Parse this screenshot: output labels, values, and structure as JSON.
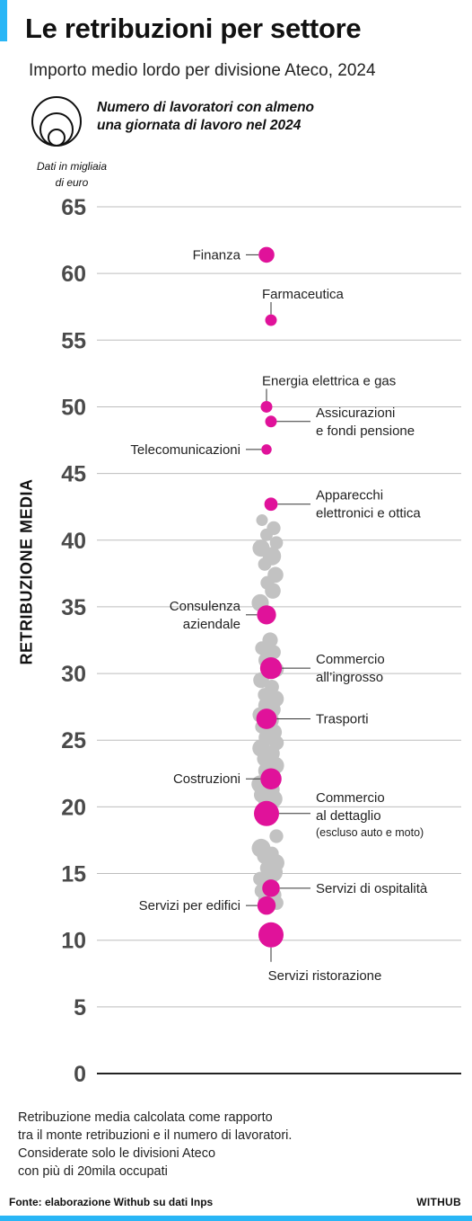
{
  "header": {
    "title": "Le retribuzioni per settore",
    "subtitle": "Importo medio lordo per divisione Ateco, 2024",
    "legend_text_line1": "Numero di lavoratori con almeno",
    "legend_text_line2": "una giornata di lavoro nel 2024",
    "unit_line1": "Dati in migliaia",
    "unit_line2": "di euro"
  },
  "footer": {
    "note_line1": "Retribuzione media calcolata come rapporto",
    "note_line2": "tra il monte retribuzioni e il numero di lavoratori.",
    "note_line3": "Considerate solo le divisioni Ateco",
    "note_line4": "con più di 20mila occupati",
    "source": "Fonte: elaborazione Withub su dati Inps",
    "brand": "WITHUB"
  },
  "colors": {
    "highlight": "#e0129a",
    "other": "#c2c2c2",
    "accent": "#29b6f6",
    "grid": "#bdbdbd",
    "axis": "#222222"
  },
  "chart_data": {
    "type": "scatter",
    "ylabel": "RETRIBUZIONE MEDIA",
    "ylim": [
      0,
      65
    ],
    "yticks": [
      0,
      5,
      10,
      15,
      20,
      25,
      30,
      35,
      40,
      45,
      50,
      55,
      60,
      65
    ],
    "size_meaning": "Numero di lavoratori con almeno una giornata di lavoro nel 2024",
    "highlighted": [
      {
        "label": [
          "Finanza"
        ],
        "value": 61.4,
        "size": 0.3,
        "label_side": "left"
      },
      {
        "label": [
          "Farmaceutica"
        ],
        "value": 56.5,
        "size": 0.12,
        "label_side": "right-above"
      },
      {
        "label": [
          "Energia elettrica e gas"
        ],
        "value": 50.0,
        "size": 0.12,
        "label_side": "right-above"
      },
      {
        "label": [
          "Assicurazioni",
          "e fondi pensione"
        ],
        "value": 48.9,
        "size": 0.12,
        "label_side": "right"
      },
      {
        "label": [
          "Telecomunicazioni"
        ],
        "value": 46.8,
        "size": 0.08,
        "label_side": "left"
      },
      {
        "label": [
          "Apparecchi",
          "elettronici e ottica"
        ],
        "value": 42.7,
        "size": 0.18,
        "label_side": "right"
      },
      {
        "label": [
          "Consulenza",
          "aziendale"
        ],
        "value": 34.4,
        "size": 0.5,
        "label_side": "left"
      },
      {
        "label": [
          "Commercio",
          "all’ingrosso"
        ],
        "value": 30.4,
        "size": 0.7,
        "label_side": "right"
      },
      {
        "label": [
          "Trasporti"
        ],
        "value": 26.6,
        "size": 0.6,
        "label_side": "right"
      },
      {
        "label": [
          "Costruzioni"
        ],
        "value": 22.1,
        "size": 0.65,
        "label_side": "left"
      },
      {
        "label": [
          "Commercio",
          "al dettaglio"
        ],
        "note": "(escluso auto e moto)",
        "value": 19.5,
        "size": 1.0,
        "label_side": "right"
      },
      {
        "label": [
          "Servizi di ospitalità"
        ],
        "value": 13.9,
        "size": 0.4,
        "label_side": "right"
      },
      {
        "label": [
          "Servizi per edifici"
        ],
        "value": 12.6,
        "size": 0.45,
        "label_side": "left"
      },
      {
        "label": [
          "Servizi ristorazione"
        ],
        "value": 10.4,
        "size": 1.0,
        "label_side": "below"
      }
    ],
    "others": [
      {
        "value": 41.5,
        "size": 0.12
      },
      {
        "value": 40.9,
        "size": 0.2
      },
      {
        "value": 40.4,
        "size": 0.15
      },
      {
        "value": 39.8,
        "size": 0.18
      },
      {
        "value": 39.4,
        "size": 0.38
      },
      {
        "value": 38.8,
        "size": 0.45
      },
      {
        "value": 38.2,
        "size": 0.18
      },
      {
        "value": 37.4,
        "size": 0.3
      },
      {
        "value": 36.8,
        "size": 0.2
      },
      {
        "value": 36.2,
        "size": 0.3
      },
      {
        "value": 35.3,
        "size": 0.38
      },
      {
        "value": 32.5,
        "size": 0.28
      },
      {
        "value": 31.9,
        "size": 0.2
      },
      {
        "value": 31.6,
        "size": 0.22
      },
      {
        "value": 31.0,
        "size": 0.32
      },
      {
        "value": 30.3,
        "size": 0.25
      },
      {
        "value": 29.5,
        "size": 0.3
      },
      {
        "value": 29.0,
        "size": 0.22
      },
      {
        "value": 28.4,
        "size": 0.2
      },
      {
        "value": 28.1,
        "size": 0.35
      },
      {
        "value": 27.6,
        "size": 0.45
      },
      {
        "value": 27.3,
        "size": 0.3
      },
      {
        "value": 26.9,
        "size": 0.28
      },
      {
        "value": 26.5,
        "size": 0.4
      },
      {
        "value": 26.0,
        "size": 0.2
      },
      {
        "value": 25.6,
        "size": 0.33
      },
      {
        "value": 25.2,
        "size": 0.3
      },
      {
        "value": 24.8,
        "size": 0.25
      },
      {
        "value": 24.4,
        "size": 0.4
      },
      {
        "value": 24.0,
        "size": 0.3
      },
      {
        "value": 23.6,
        "size": 0.28
      },
      {
        "value": 23.1,
        "size": 0.38
      },
      {
        "value": 22.7,
        "size": 0.45
      },
      {
        "value": 22.2,
        "size": 0.35
      },
      {
        "value": 21.7,
        "size": 0.4
      },
      {
        "value": 21.3,
        "size": 0.5
      },
      {
        "value": 20.9,
        "size": 0.32
      },
      {
        "value": 20.6,
        "size": 0.4
      },
      {
        "value": 20.3,
        "size": 0.3
      },
      {
        "value": 17.8,
        "size": 0.2
      },
      {
        "value": 16.9,
        "size": 0.48
      },
      {
        "value": 16.5,
        "size": 0.2
      },
      {
        "value": 16.3,
        "size": 0.28
      },
      {
        "value": 15.8,
        "size": 0.42
      },
      {
        "value": 15.4,
        "size": 0.25
      },
      {
        "value": 15.1,
        "size": 0.55
      },
      {
        "value": 14.6,
        "size": 0.22
      },
      {
        "value": 14.1,
        "size": 0.3
      },
      {
        "value": 13.7,
        "size": 0.25
      },
      {
        "value": 13.4,
        "size": 0.28
      },
      {
        "value": 13.0,
        "size": 0.35
      },
      {
        "value": 12.8,
        "size": 0.22
      }
    ]
  }
}
